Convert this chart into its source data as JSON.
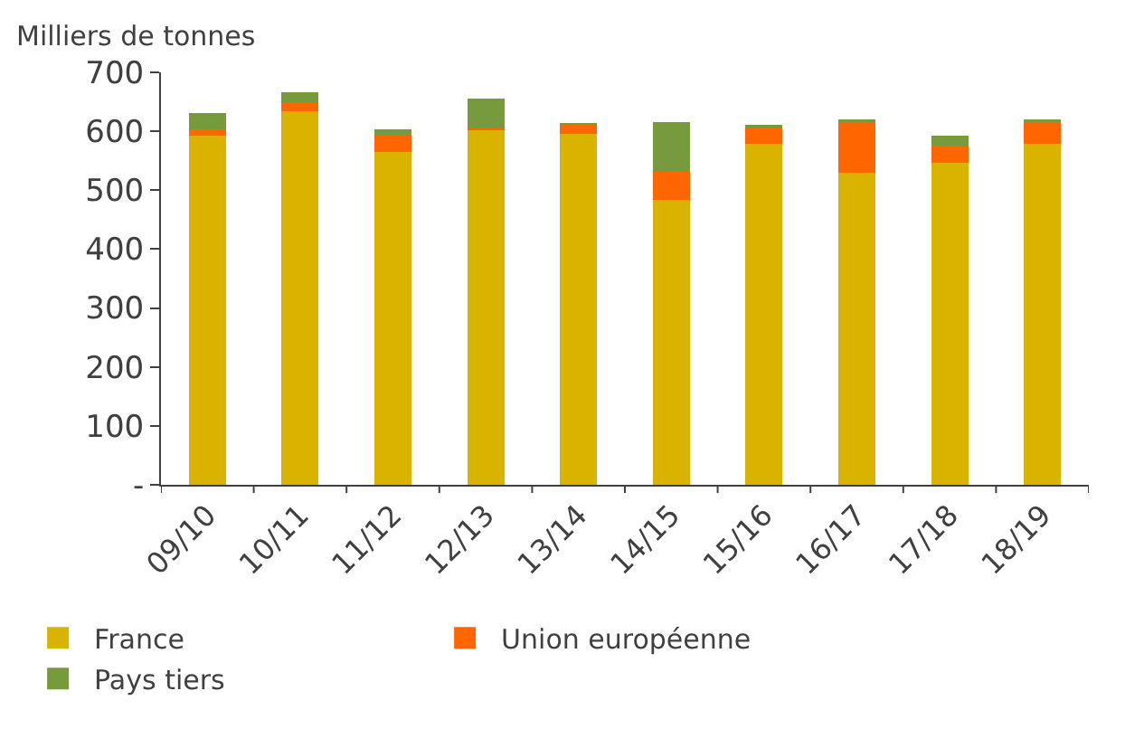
{
  "chart_data": {
    "type": "bar",
    "stacked": true,
    "ylabel": "Milliers de tonnes",
    "categories": [
      "09/10",
      "10/11",
      "11/12",
      "12/13",
      "13/14",
      "14/15",
      "15/16",
      "16/17",
      "17/18",
      "18/19"
    ],
    "series": [
      {
        "name": "France",
        "color": "#d9b300",
        "values": [
          593,
          634,
          565,
          602,
          596,
          483,
          579,
          529,
          547,
          578
        ]
      },
      {
        "name": "Union européenne",
        "color": "#ff6600",
        "values": [
          10,
          15,
          28,
          5,
          15,
          50,
          28,
          88,
          28,
          39
        ]
      },
      {
        "name": "Pays tiers",
        "color": "#779a3d",
        "values": [
          28,
          18,
          10,
          49,
          2,
          83,
          2,
          2,
          18,
          2
        ]
      }
    ],
    "ylim": [
      0,
      700
    ],
    "yticks": [
      {
        "value": 0,
        "label": "-"
      },
      100,
      200,
      300,
      400,
      500,
      600,
      700
    ],
    "legend": "bottom"
  }
}
